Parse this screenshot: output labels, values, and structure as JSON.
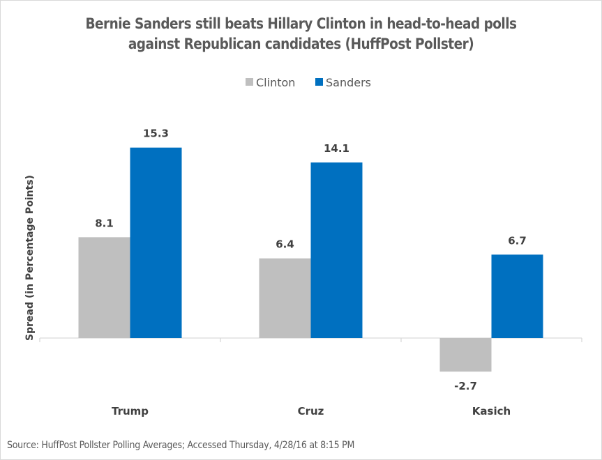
{
  "chart_data": {
    "type": "bar",
    "title": "Bernie Sanders still beats Hillary Clinton in head-to-head polls against Republican candidates (HuffPost Pollster)",
    "title_lines": [
      "Bernie Sanders still beats Hillary Clinton in head-to-head polls",
      "against Republican candidates (HuffPost Pollster)"
    ],
    "categories": [
      "Trump",
      "Cruz",
      "Kasich"
    ],
    "series": [
      {
        "name": "Clinton",
        "color": "#bfbfbf",
        "values": [
          8.1,
          6.4,
          -2.7
        ]
      },
      {
        "name": "Sanders",
        "color": "#0070c0",
        "values": [
          15.3,
          14.1,
          6.7
        ]
      }
    ],
    "xlabel": "",
    "ylabel": "Spread (in Percentage Points)",
    "ylim": [
      -2.7,
      15.3
    ],
    "grid": false,
    "legend": "top-center",
    "source": "Source: HuffPost Pollster Polling Averages; Accessed Thursday, 4/28/16 at 8:15 PM"
  }
}
